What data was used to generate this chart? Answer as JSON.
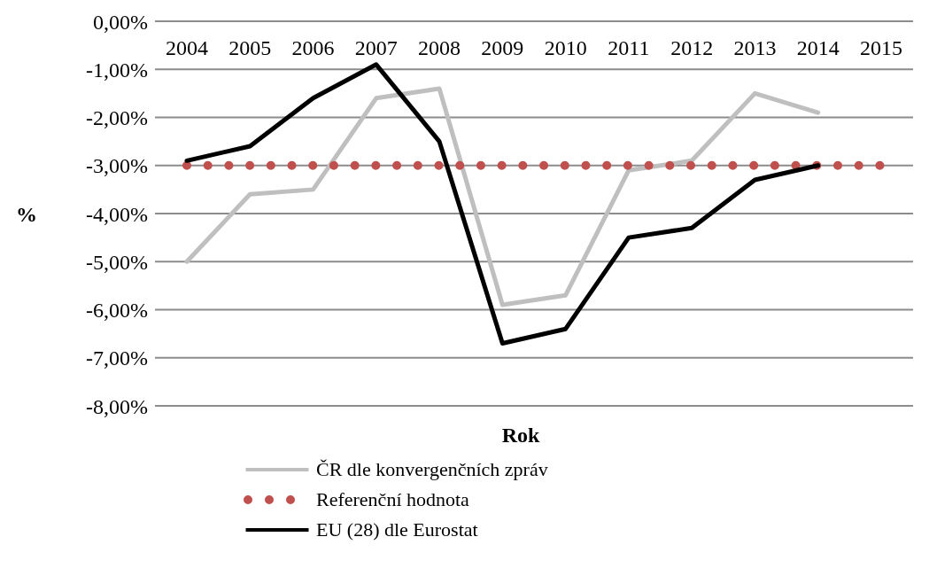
{
  "chart_data": {
    "type": "line",
    "xlabel": "Rok",
    "ylabel": "%",
    "categories": [
      "2004",
      "2005",
      "2006",
      "2007",
      "2008",
      "2009",
      "2010",
      "2011",
      "2012",
      "2013",
      "2014",
      "2015"
    ],
    "series": [
      {
        "name": "ČR dle konvergenčních zpráv",
        "color": "#bfbfbf",
        "line_style": "solid",
        "values": [
          -5.0,
          -3.6,
          -3.5,
          -1.6,
          -1.4,
          -5.9,
          -5.7,
          -3.1,
          -2.9,
          -1.5,
          -1.9,
          null
        ]
      },
      {
        "name": "Referenční hodnota",
        "color": "#c0504d",
        "line_style": "dotted",
        "values": [
          -3,
          -3,
          -3,
          -3,
          -3,
          -3,
          -3,
          -3,
          -3,
          -3,
          -3,
          -3
        ]
      },
      {
        "name": "EU (28) dle Eurostat",
        "color": "#000000",
        "line_style": "solid",
        "values": [
          -2.9,
          -2.6,
          -1.6,
          -0.9,
          -2.5,
          -6.7,
          -6.4,
          -4.5,
          -4.3,
          -3.3,
          -3.0,
          null
        ]
      }
    ],
    "ylim": [
      -8,
      0
    ],
    "yticks": [
      {
        "value": 0,
        "label": "0,00%"
      },
      {
        "value": -1,
        "label": "-1,00%"
      },
      {
        "value": -2,
        "label": "-2,00%"
      },
      {
        "value": -3,
        "label": "-3,00%"
      },
      {
        "value": -4,
        "label": "-4,00%"
      },
      {
        "value": -5,
        "label": "-5,00%"
      },
      {
        "value": -6,
        "label": "-6,00%"
      },
      {
        "value": -7,
        "label": "-7,00%"
      },
      {
        "value": -8,
        "label": "-8,00%"
      }
    ],
    "grid": "y",
    "legend": "bottom",
    "marker": "none"
  }
}
